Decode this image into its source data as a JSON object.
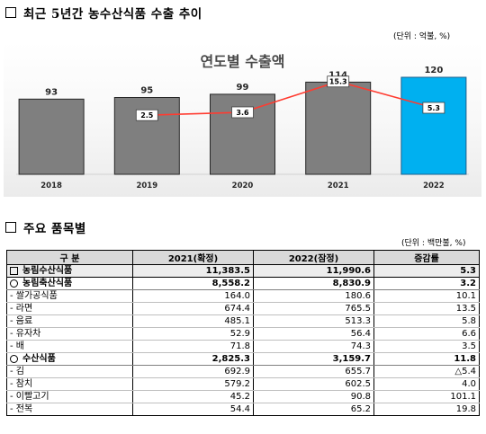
{
  "section1": {
    "title": "최근 5년간 농수산식품 수출 추이",
    "unit": "(단위 : 억불, %)"
  },
  "chart_data": {
    "type": "bar",
    "title": "연도별 수출액",
    "categories": [
      "2018",
      "2019",
      "2020",
      "2021",
      "2022"
    ],
    "series": [
      {
        "values": [
          93,
          95,
          99,
          114,
          120
        ]
      },
      {
        "values": [
          null,
          2.5,
          3.6,
          15.3,
          5.3
        ]
      }
    ],
    "bar_labels": [
      "93",
      "95",
      "99",
      "114",
      "120"
    ],
    "line_labels": [
      "",
      "2.5",
      "3.6",
      "15.3",
      "5.3"
    ],
    "bar_color": "#7f7f7f",
    "highlight_color": "#00b0f0",
    "line_color": "#ff3b30",
    "ylim": [
      0,
      130
    ],
    "line_ylim": [
      -20,
      20
    ]
  },
  "section2": {
    "title": "주요 품목별",
    "unit": "(단위 : 백만불, %)"
  },
  "table": {
    "headers": [
      "구 분",
      "2021(확정)",
      "2022(잠정)",
      "증감률"
    ],
    "rows": [
      {
        "level": 0,
        "marker": "square",
        "name": "농림수산식품",
        "v2021": "11,383.5",
        "v2022": "11,990.6",
        "rate": "5.3"
      },
      {
        "level": 1,
        "marker": "circle",
        "name": "농림축산식품",
        "v2021": "8,558.2",
        "v2022": "8,830.9",
        "rate": "3.2"
      },
      {
        "level": 2,
        "name": "- 쌀가공식품",
        "v2021": "164.0",
        "v2022": "180.6",
        "rate": "10.1"
      },
      {
        "level": 2,
        "name": "- 라면",
        "v2021": "674.4",
        "v2022": "765.5",
        "rate": "13.5"
      },
      {
        "level": 2,
        "name": "- 음료",
        "v2021": "485.1",
        "v2022": "513.3",
        "rate": "5.8"
      },
      {
        "level": 2,
        "name": "- 유자차",
        "v2021": "52.9",
        "v2022": "56.4",
        "rate": "6.6"
      },
      {
        "level": 2,
        "name": "- 배",
        "v2021": "71.8",
        "v2022": "74.3",
        "rate": "3.5"
      },
      {
        "level": 1,
        "marker": "circle",
        "name": "수산식품",
        "v2021": "2,825.3",
        "v2022": "3,159.7",
        "rate": "11.8"
      },
      {
        "level": 2,
        "name": "- 김",
        "v2021": "692.9",
        "v2022": "655.7",
        "rate": "△5.4"
      },
      {
        "level": 2,
        "name": "- 참치",
        "v2021": "579.2",
        "v2022": "602.5",
        "rate": "4.0"
      },
      {
        "level": 2,
        "name": "- 이빨고기",
        "v2021": "45.2",
        "v2022": "90.8",
        "rate": "101.1"
      },
      {
        "level": 2,
        "name": "- 전복",
        "v2021": "54.4",
        "v2022": "65.2",
        "rate": "19.8"
      }
    ]
  }
}
